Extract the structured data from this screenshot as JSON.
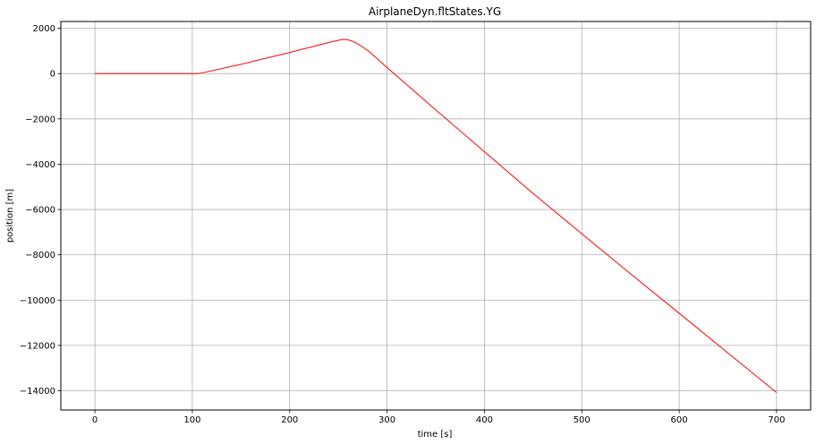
{
  "chart_data": {
    "type": "line",
    "title": "AirplaneDyn.fltStates.YG",
    "xlabel": "time [s]",
    "ylabel": "position [m]",
    "xlim": [
      -35,
      735
    ],
    "ylim": [
      -14850,
      2300
    ],
    "grid": true,
    "x_ticks": [
      0,
      100,
      200,
      300,
      400,
      500,
      600,
      700
    ],
    "y_ticks": [
      2000,
      0,
      -2000,
      -4000,
      -6000,
      -8000,
      -10000,
      -12000,
      -14000
    ],
    "series": [
      {
        "color": "#ff0000",
        "x": [
          0,
          50,
          100,
          106,
          110,
          150,
          200,
          240,
          250,
          255,
          260,
          265,
          270,
          280,
          300,
          350,
          400,
          450,
          500,
          550,
          600,
          650,
          700
        ],
        "y": [
          0,
          0,
          0,
          0,
          30,
          410,
          930,
          1370,
          1470,
          1510,
          1490,
          1420,
          1310,
          1030,
          270,
          -1600,
          -3450,
          -5290,
          -7070,
          -8840,
          -10580,
          -12330,
          -14080
        ]
      }
    ]
  }
}
